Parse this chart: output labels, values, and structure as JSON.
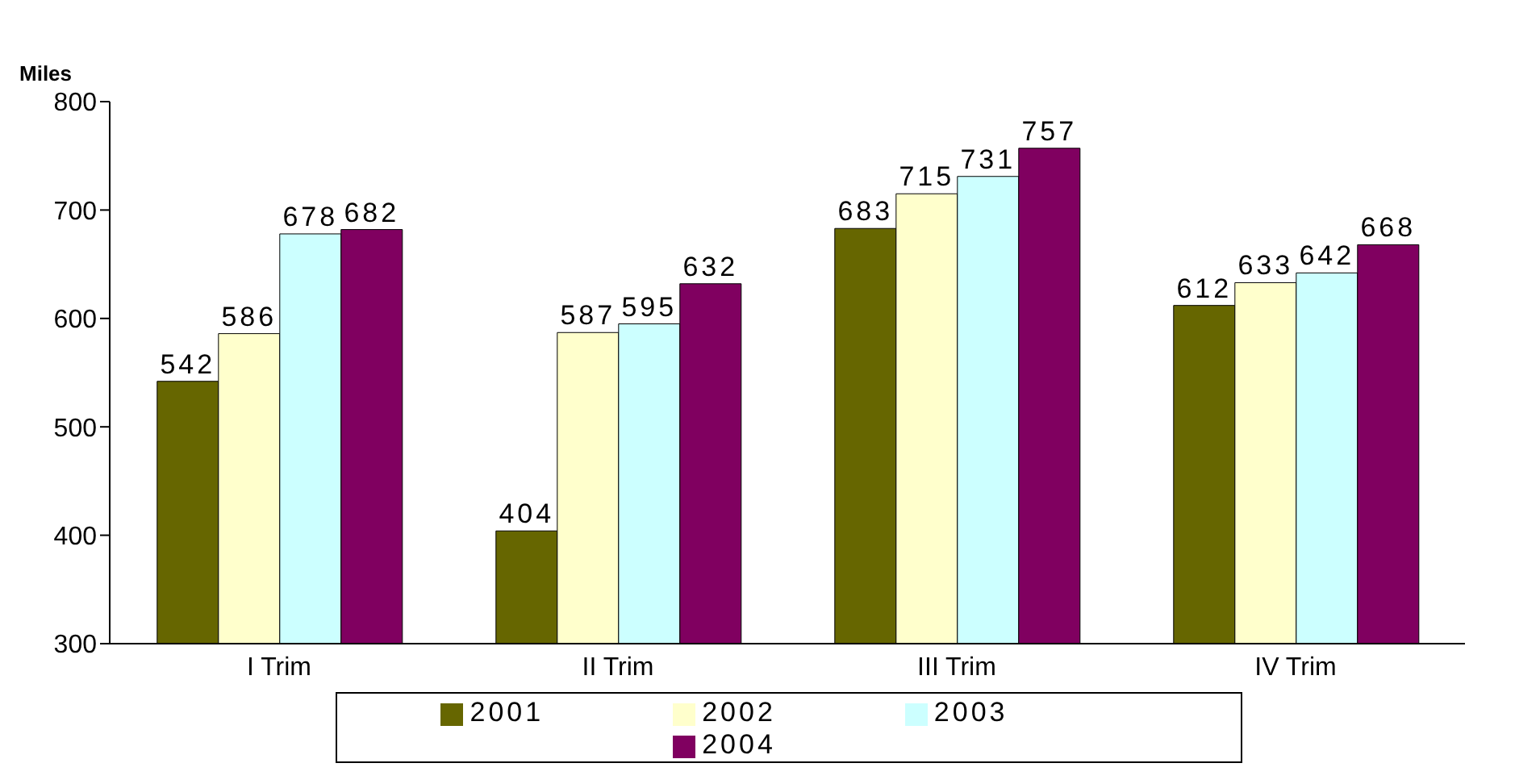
{
  "chart_data": {
    "type": "bar",
    "ylabel": "Miles",
    "categories": [
      "I Trim",
      "II Trim",
      "III Trim",
      "IV Trim"
    ],
    "series": [
      {
        "name": "2001",
        "color": "#666600",
        "values": [
          542,
          404,
          683,
          612
        ]
      },
      {
        "name": "2002",
        "color": "#ffffcc",
        "values": [
          586,
          587,
          715,
          633
        ]
      },
      {
        "name": "2003",
        "color": "#ccffff",
        "values": [
          678,
          595,
          731,
          642
        ]
      },
      {
        "name": "2004",
        "color": "#800060",
        "values": [
          682,
          632,
          757,
          668
        ]
      }
    ],
    "ylim": [
      300,
      800
    ],
    "yticks": [
      300,
      400,
      500,
      600,
      700,
      800
    ],
    "data_labels": true,
    "legend": "bottom",
    "grid": false
  }
}
